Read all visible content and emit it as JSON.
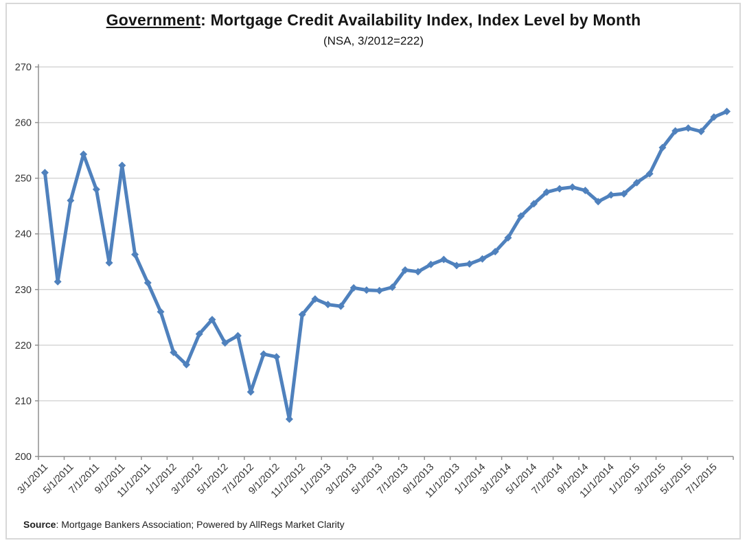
{
  "header": {
    "title_emphasis": "Government",
    "title_rest": ": Mortgage Credit Availability Index, Index Level by Month",
    "subtitle": "(NSA, 3/2012=222)"
  },
  "footer": {
    "source_label": "Source",
    "source_rest": ": Mortgage Bankers Association; Powered by AllRegs Market Clarity"
  },
  "chart_data": {
    "type": "line",
    "title": "Government: Mortgage Credit Availability Index, Index Level by Month",
    "subtitle": "(NSA, 3/2012=222)",
    "xlabel": "",
    "ylabel": "",
    "x": [
      "3/1/2011",
      "4/1/2011",
      "5/1/2011",
      "6/1/2011",
      "7/1/2011",
      "8/1/2011",
      "9/1/2011",
      "10/1/2011",
      "11/1/2011",
      "12/1/2011",
      "1/1/2012",
      "2/1/2012",
      "3/1/2012",
      "4/1/2012",
      "5/1/2012",
      "6/1/2012",
      "7/1/2012",
      "8/1/2012",
      "9/1/2012",
      "10/1/2012",
      "11/1/2012",
      "12/1/2012",
      "1/1/2013",
      "2/1/2013",
      "3/1/2013",
      "4/1/2013",
      "5/1/2013",
      "6/1/2013",
      "7/1/2013",
      "8/1/2013",
      "9/1/2013",
      "10/1/2013",
      "11/1/2013",
      "12/1/2013",
      "1/1/2014",
      "2/1/2014",
      "3/1/2014",
      "4/1/2014",
      "5/1/2014",
      "6/1/2014",
      "7/1/2014",
      "8/1/2014",
      "9/1/2014",
      "10/1/2014",
      "11/1/2014",
      "12/1/2014",
      "1/1/2015",
      "2/1/2015",
      "3/1/2015",
      "4/1/2015",
      "5/1/2015",
      "6/1/2015",
      "7/1/2015",
      "8/1/2015"
    ],
    "values": [
      251.0,
      231.4,
      246.0,
      254.3,
      248.0,
      234.8,
      252.3,
      236.3,
      231.2,
      226.0,
      218.7,
      216.5,
      222.0,
      224.6,
      220.4,
      221.7,
      211.6,
      218.4,
      217.9,
      206.7,
      225.5,
      228.3,
      227.3,
      227.0,
      230.3,
      229.9,
      229.8,
      230.4,
      233.5,
      233.2,
      234.5,
      235.4,
      234.3,
      234.6,
      235.5,
      236.8,
      239.3,
      243.2,
      245.4,
      247.5,
      248.1,
      248.4,
      247.8,
      245.8,
      247.0,
      247.2,
      249.2,
      250.8,
      255.5,
      258.5,
      259.0,
      258.4,
      261.0,
      262.0
    ],
    "ylim": [
      200,
      270
    ],
    "yticks": [
      200,
      210,
      220,
      230,
      240,
      250,
      260,
      270
    ],
    "xtick_labels": [
      "3/1/2011",
      "5/1/2011",
      "7/1/2011",
      "9/1/2011",
      "11/1/2011",
      "1/1/2012",
      "3/1/2012",
      "5/1/2012",
      "7/1/2012",
      "9/1/2012",
      "11/1/2012",
      "1/1/2013",
      "3/1/2013",
      "5/1/2013",
      "7/1/2013",
      "9/1/2013",
      "11/1/2013",
      "1/1/2014",
      "3/1/2014",
      "5/1/2014",
      "7/1/2014",
      "9/1/2014",
      "11/1/2014",
      "1/1/2015",
      "3/1/2015",
      "5/1/2015",
      "7/1/2015"
    ],
    "xtick_label_interval": 2,
    "grid": "horizontal",
    "legend": "none",
    "line_color": "#4F81BD",
    "marker": "diamond",
    "gridline_color": "#d6d6d6",
    "axis_color": "#8f8f8f",
    "label_color": "#333333"
  }
}
